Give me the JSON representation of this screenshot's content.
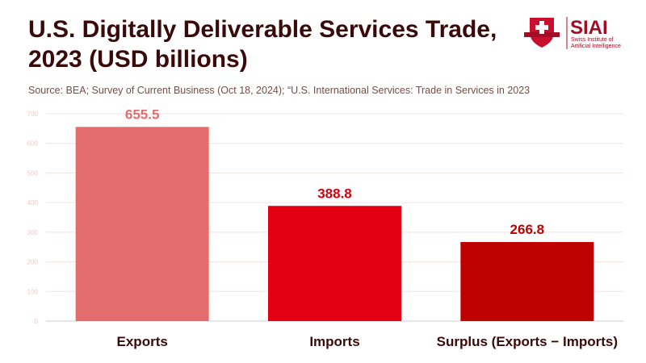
{
  "chart_data": {
    "type": "bar",
    "title": "U.S. Digitally Deliverable Services Trade, 2023 (USD billions)",
    "subtitle": "Source: BEA; Survey of Current Business (Oct 18, 2024); “U.S. International Services: Trade in Services in 2023",
    "categories": [
      "Exports",
      "Imports",
      "Surplus (Exports − Imports)"
    ],
    "values": [
      655.5,
      388.8,
      266.8
    ],
    "value_labels": [
      "655.5",
      "388.8",
      "266.8"
    ],
    "colors": [
      "#e36d6d",
      "#e30013",
      "#bf0000"
    ],
    "label_colors": [
      "#e36d6d",
      "#d0000f",
      "#c00000"
    ],
    "ylim": [
      0,
      700
    ],
    "yticks": [
      0,
      100,
      200,
      300,
      400,
      500,
      600,
      700
    ],
    "grid": true,
    "xlabel": "",
    "ylabel": ""
  },
  "logo": {
    "name": "SIAI",
    "line1": "Swiss Institute of",
    "line2": "Artificial Intelligence"
  }
}
